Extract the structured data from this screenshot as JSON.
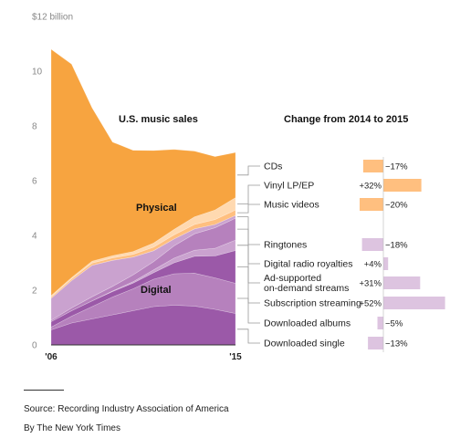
{
  "chart_data": [
    {
      "type": "area",
      "stacked": true,
      "title": "U.S. music sales",
      "xlabel": "",
      "ylabel": "",
      "ylim": [
        0,
        12
      ],
      "yticks": [
        0,
        2,
        4,
        6,
        8,
        10,
        12
      ],
      "ytick_labels": [
        "0",
        "2",
        "4",
        "6",
        "8",
        "10",
        "$12 billion"
      ],
      "x": [
        2006,
        2007,
        2008,
        2009,
        2010,
        2011,
        2012,
        2013,
        2014,
        2015
      ],
      "xtick_labels": [
        {
          "x": 2006,
          "label": "'06"
        },
        {
          "x": 2015,
          "label": "'15"
        }
      ],
      "area_labels": [
        "Physical",
        "Digital"
      ],
      "grid": false,
      "series": [
        {
          "name": "Downloaded single",
          "group": "Digital",
          "color": "#9b59a8",
          "values": [
            0.55,
            0.8,
            0.95,
            1.1,
            1.25,
            1.4,
            1.45,
            1.42,
            1.3,
            1.15
          ]
        },
        {
          "name": "Downloaded albums",
          "group": "Digital",
          "color": "#b681bd",
          "values": [
            0.1,
            0.25,
            0.45,
            0.65,
            0.8,
            1.0,
            1.15,
            1.2,
            1.15,
            1.1
          ]
        },
        {
          "name": "Subscription streaming",
          "group": "Digital",
          "color": "#9b59a8",
          "values": [
            0.2,
            0.2,
            0.21,
            0.2,
            0.21,
            0.24,
            0.4,
            0.62,
            0.8,
            1.2
          ]
        },
        {
          "name": "Ad-supported on-demand streams",
          "group": "Digital",
          "color": "#caa2cf",
          "values": [
            0.0,
            0.0,
            0.0,
            0.02,
            0.05,
            0.1,
            0.17,
            0.22,
            0.28,
            0.38
          ]
        },
        {
          "name": "Digital radio royalties",
          "group": "Digital",
          "color": "#b681bd",
          "values": [
            0.05,
            0.1,
            0.15,
            0.17,
            0.25,
            0.3,
            0.45,
            0.6,
            0.75,
            0.8
          ]
        },
        {
          "name": "Ringtones",
          "group": "Digital",
          "color": "#caa2cf",
          "values": [
            0.8,
            1.0,
            1.15,
            0.95,
            0.65,
            0.4,
            0.25,
            0.18,
            0.12,
            0.1
          ]
        },
        {
          "name": "Music videos",
          "group": "Physical",
          "color": "#ffbf7f",
          "values": [
            0.05,
            0.06,
            0.08,
            0.09,
            0.1,
            0.13,
            0.15,
            0.16,
            0.18,
            0.2
          ]
        },
        {
          "name": "Vinyl LP/EP",
          "group": "Physical",
          "color": "#ffd9b0",
          "values": [
            0.05,
            0.05,
            0.07,
            0.08,
            0.1,
            0.15,
            0.2,
            0.28,
            0.35,
            0.45
          ]
        },
        {
          "name": "CDs",
          "group": "Physical",
          "color": "#f7a440",
          "values": [
            9.0,
            7.8,
            5.6,
            4.15,
            3.7,
            3.38,
            2.92,
            2.4,
            1.95,
            1.65
          ]
        }
      ]
    },
    {
      "type": "bar",
      "orientation": "horizontal",
      "title": "Change from 2014 to 2015",
      "categories": [
        "CDs",
        "Vinyl LP/EP",
        "Music videos",
        "Ringtones",
        "Digital radio royalties",
        "Ad-supported on-demand streams",
        "Subscription streaming",
        "Downloaded albums",
        "Downloaded single"
      ],
      "category_labels": [
        [
          "CDs"
        ],
        [
          "Vinyl LP/EP"
        ],
        [
          "Music videos"
        ],
        [
          "Ringtones"
        ],
        [
          "Digital radio royalties"
        ],
        [
          "Ad-supported",
          "on-demand streams"
        ],
        [
          "Subscription streaming"
        ],
        [
          "Downloaded albums"
        ],
        [
          "Downloaded single"
        ]
      ],
      "values": [
        -17,
        32,
        -20,
        -18,
        4,
        31,
        52,
        -5,
        -13
      ],
      "value_labels": [
        "−17%",
        "+32%",
        "−20%",
        "−18%",
        "+4%",
        "+31%",
        "+52%",
        "−5%",
        "−13%"
      ],
      "colors": [
        "#ffbf7f",
        "#ffbf7f",
        "#ffbf7f",
        "#ddc4e0",
        "#ddc4e0",
        "#ddc4e0",
        "#ddc4e0",
        "#ddc4e0",
        "#ddc4e0"
      ]
    }
  ],
  "footer": {
    "source": "Source: Recording Industry Association of America",
    "byline": "By The New York Times"
  }
}
